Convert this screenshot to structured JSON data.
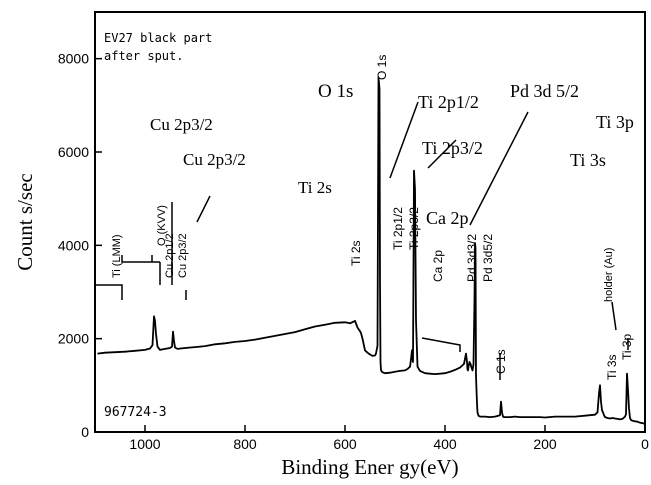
{
  "chart_data": {
    "type": "line",
    "title": "",
    "xlabel": "Binding Ener gy(eV)",
    "ylabel": "Count s/sec",
    "xlim": [
      1100,
      0
    ],
    "ylim": [
      0,
      9000
    ],
    "x_ticks": [
      1000,
      800,
      600,
      400,
      200,
      0
    ],
    "x_tick_labels": [
      "1000",
      "800",
      "600",
      "400",
      "200",
      "0"
    ],
    "y_ticks": [
      0,
      2000,
      4000,
      6000,
      8000
    ],
    "y_tick_labels": [
      "0",
      "2000",
      "4000",
      "6000",
      "8000"
    ],
    "grid": false,
    "legend": "none",
    "sample_note": [
      "EV27 black part",
      "after sput."
    ],
    "sample_id": "967724-3",
    "series": [
      {
        "x": [
          1095,
          1080,
          1060,
          1040,
          1020,
          1000,
          990,
          985,
          982,
          980,
          978,
          975,
          970,
          960,
          950,
          946,
          944,
          942,
          940,
          935,
          920,
          900,
          880,
          860,
          840,
          820,
          800,
          780,
          760,
          740,
          720,
          700,
          680,
          660,
          640,
          620,
          600,
          590,
          580,
          575,
          572,
          570,
          568,
          565,
          562,
          560,
          555,
          550,
          545,
          540,
          538,
          535,
          533,
          531,
          530,
          529,
          528,
          527,
          525,
          520,
          510,
          500,
          490,
          480,
          475,
          470,
          468,
          466,
          464,
          462,
          460,
          458,
          455,
          450,
          440,
          430,
          420,
          410,
          400,
          390,
          380,
          370,
          362,
          358,
          356,
          355,
          354,
          353,
          351,
          349,
          347,
          345,
          343,
          341,
          340,
          339,
          338,
          337,
          336,
          335,
          333,
          330,
          320,
          310,
          300,
          290,
          288,
          286,
          284,
          282,
          280,
          270,
          260,
          250,
          240,
          230,
          220,
          210,
          200,
          180,
          160,
          140,
          120,
          100,
          95,
          92,
          90,
          88,
          86,
          84,
          82,
          80,
          75,
          70,
          65,
          60,
          55,
          50,
          45,
          40,
          38,
          36,
          34,
          32,
          30,
          28,
          25,
          20,
          15,
          10,
          5,
          0
        ],
        "y": [
          1680,
          1700,
          1710,
          1720,
          1740,
          1760,
          1790,
          1860,
          2480,
          2380,
          2100,
          1830,
          1760,
          1780,
          1800,
          1830,
          2150,
          1950,
          1810,
          1780,
          1800,
          1820,
          1840,
          1880,
          1900,
          1930,
          1950,
          1980,
          2020,
          2060,
          2100,
          2140,
          2200,
          2260,
          2300,
          2340,
          2350,
          2330,
          2380,
          2240,
          2190,
          2160,
          2120,
          2000,
          1850,
          1750,
          1700,
          1660,
          1630,
          1640,
          1680,
          1850,
          7600,
          7350,
          3200,
          1500,
          1330,
          1300,
          1280,
          1260,
          1270,
          1290,
          1310,
          1320,
          1350,
          1400,
          1560,
          1750,
          1500,
          5600,
          5200,
          2400,
          1400,
          1310,
          1260,
          1250,
          1240,
          1250,
          1260,
          1290,
          1330,
          1380,
          1460,
          1680,
          1500,
          1340,
          1320,
          1400,
          1500,
          1460,
          1380,
          1320,
          1450,
          2850,
          4050,
          3950,
          1200,
          900,
          620,
          420,
          350,
          330,
          330,
          320,
          330,
          360,
          650,
          420,
          330,
          320,
          320,
          320,
          330,
          320,
          320,
          320,
          320,
          320,
          310,
          330,
          330,
          330,
          350,
          370,
          420,
          830,
          1000,
          650,
          470,
          420,
          360,
          320,
          300,
          290,
          300,
          290,
          280,
          270,
          280,
          330,
          380,
          1250,
          900,
          500,
          300,
          260,
          240,
          230,
          220,
          200,
          190,
          170
        ]
      }
    ],
    "annotations": [
      {
        "text": "O 1s",
        "style": "serif"
      },
      {
        "text": "O 1s",
        "style": "rot"
      },
      {
        "text": "Ti 2p1/2",
        "style": "serif"
      },
      {
        "text": "Ti 2p1/2",
        "style": "rot"
      },
      {
        "text": "Ti 2p3/2",
        "style": "rot"
      },
      {
        "text": "Ti 2p3/2",
        "style": "serif"
      },
      {
        "text": "Pd 3d 5/2",
        "style": "serif"
      },
      {
        "text": "Pd 3d5/2",
        "style": "rot"
      },
      {
        "text": "Pd 3d3/2",
        "style": "rot"
      },
      {
        "text": "Ca 2p",
        "style": "serif"
      },
      {
        "text": "Ca 2p",
        "style": "rot"
      },
      {
        "text": "Cu 2p3/2",
        "style": "serif"
      },
      {
        "text": "Cu 2p3/2",
        "style": "serif"
      },
      {
        "text": "Cu 2p3/2",
        "style": "rot"
      },
      {
        "text": "Cu 2p1/2",
        "style": "rot"
      },
      {
        "text": "O (KVV)",
        "style": "rot"
      },
      {
        "text": "Ti (LMM)",
        "style": "rot"
      },
      {
        "text": "Ti 2s",
        "style": "serif"
      },
      {
        "text": "Ti 2s",
        "style": "rot"
      },
      {
        "text": "C 1s",
        "style": "rot"
      },
      {
        "text": "holder (Au)",
        "style": "rot"
      },
      {
        "text": "Ti 3s",
        "style": "serif"
      },
      {
        "text": "Ti 3s",
        "style": "rot"
      },
      {
        "text": "Ti 3p",
        "style": "serif"
      },
      {
        "text": "Ti 3p",
        "style": "rot"
      }
    ]
  }
}
